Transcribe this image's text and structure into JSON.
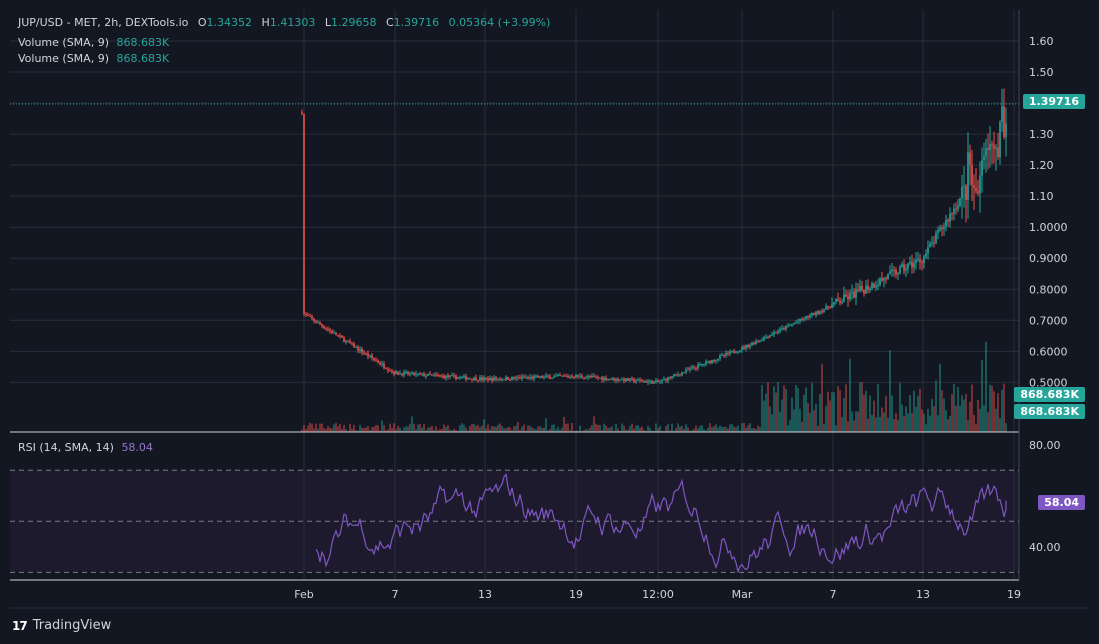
{
  "header": {
    "symbol": "JUP/USD - MET, 2h, DEXTools.io",
    "o_label": "O",
    "o_value": "1.34352",
    "h_label": "H",
    "h_value": "1.41303",
    "l_label": "L",
    "l_value": "1.29658",
    "c_label": "C",
    "c_value": "1.39716",
    "change": "0.05364 (+3.99%)",
    "volume1_label": "Volume (SMA, 9)",
    "volume1_value": "868.683K",
    "volume2_label": "Volume (SMA, 9)",
    "volume2_value": "868.683K"
  },
  "badges": {
    "price": "1.39716",
    "volume1": "868.683K",
    "volume2": "868.683K",
    "rsi": "58.04"
  },
  "rsi_legend": {
    "label": "RSI (14, SMA, 14)",
    "value": "58.04"
  },
  "branding": {
    "name": "TradingView",
    "logo": "17"
  },
  "colors": {
    "up": "#26a69a",
    "down": "#ef5350",
    "rsi": "#7e57c2",
    "bg": "#131722",
    "grid": "#2a2e39"
  },
  "chart_data": [
    {
      "type": "candlestick",
      "title": "JUP/USD - MET, 2h, DEXTools.io",
      "yticks": [
        "1.60",
        "1.50",
        "1.40",
        "1.30",
        "1.20",
        "1.10",
        "1.0000",
        "0.9000",
        "0.8000",
        "0.7000",
        "0.6000",
        "0.5000"
      ],
      "ylim": [
        0.34,
        1.7
      ],
      "last_price": 1.39716,
      "xticks": [
        "Feb",
        "7",
        "13",
        "19",
        "12:00",
        "Mar",
        "7",
        "13",
        "19"
      ],
      "key_levels": [
        {
          "x": "Feb",
          "y": 0.72
        },
        {
          "x": "7",
          "y": 0.53
        },
        {
          "x": "13",
          "y": 0.51
        },
        {
          "x": "19",
          "y": 0.52
        },
        {
          "x": "12:00",
          "y": 0.5
        },
        {
          "x": "Mar",
          "y": 0.61
        },
        {
          "x": "7",
          "y": 0.75
        },
        {
          "x": "13",
          "y": 0.9
        },
        {
          "x": "19",
          "y": 1.37
        }
      ],
      "ohlc_last": {
        "o": 1.34352,
        "h": 1.41303,
        "l": 1.29658,
        "c": 1.39716
      }
    },
    {
      "type": "line",
      "title": "RSI (14, SMA, 14)",
      "yticks": [
        "80.00",
        "40.00"
      ],
      "ylim": [
        27,
        85
      ],
      "bands": [
        70,
        50,
        30
      ],
      "last_value": 58.04
    }
  ]
}
